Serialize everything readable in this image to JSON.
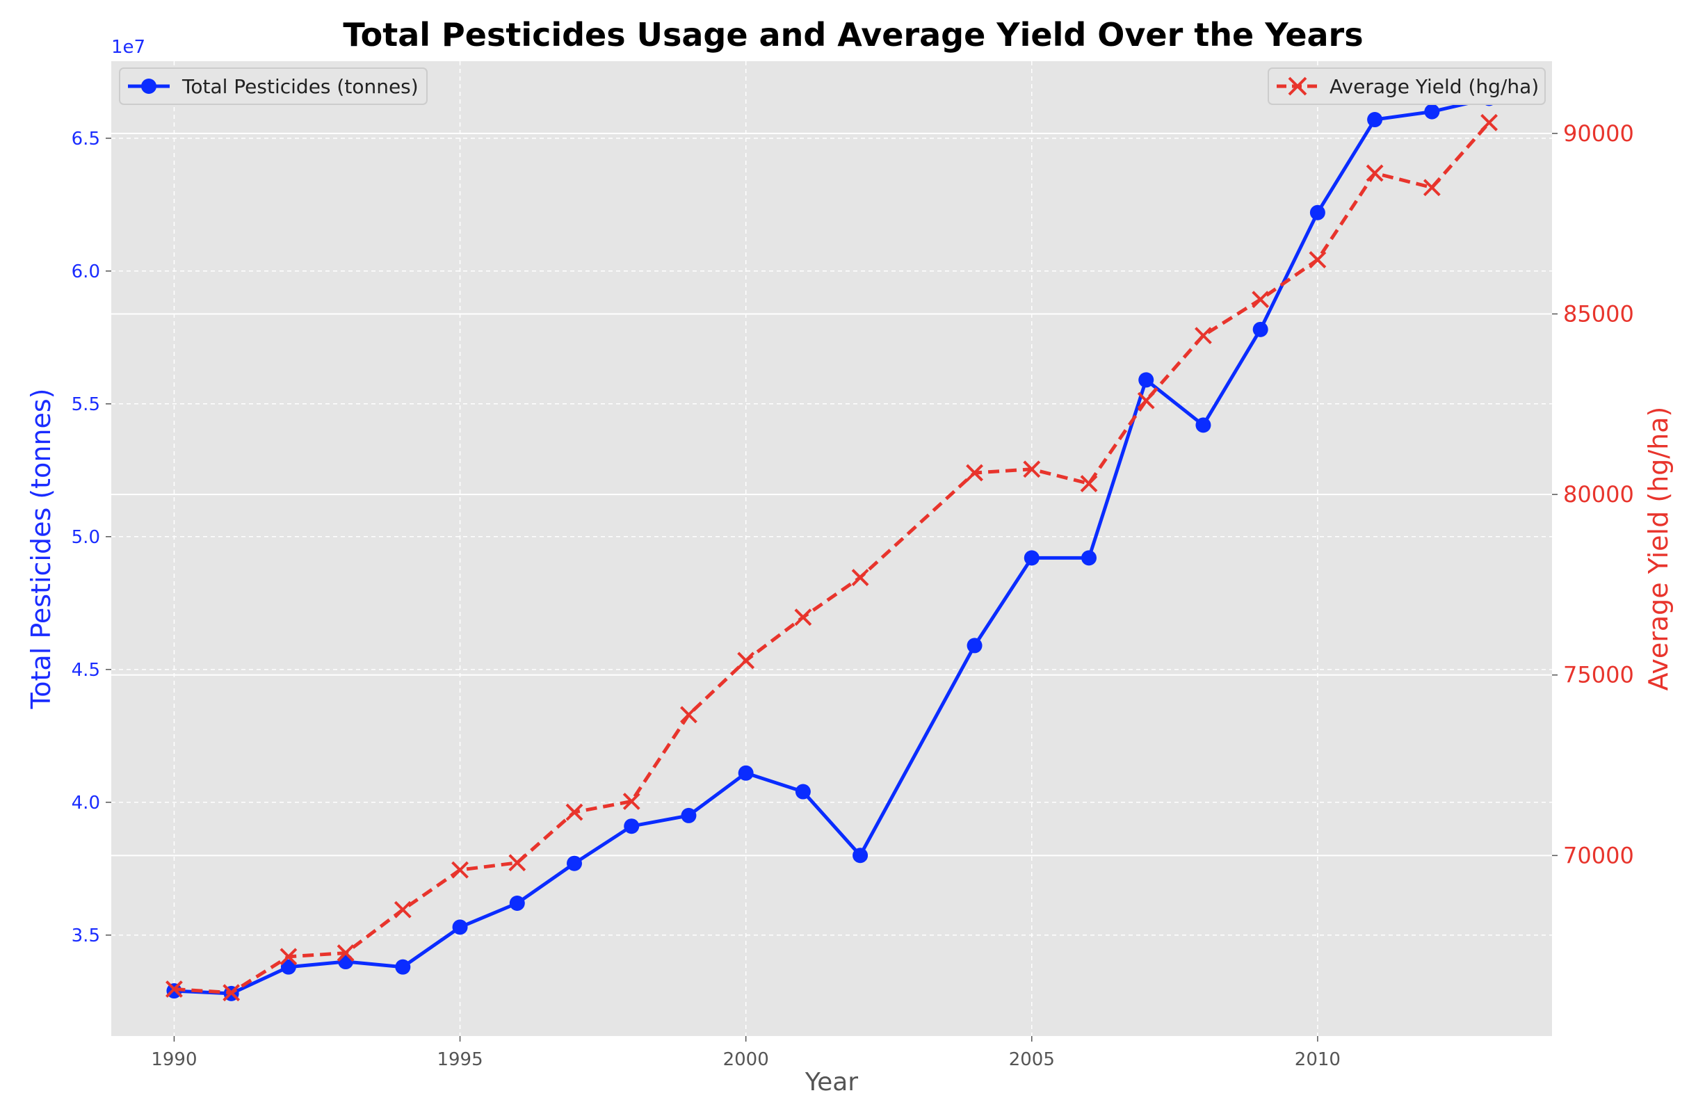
{
  "chart_data": {
    "type": "line",
    "title": "Total Pesticides Usage and Average Yield Over the Years",
    "xlabel": "Year",
    "ylabel_left": "Total Pesticides (tonnes)",
    "ylabel_right": "Average Yield (hg/ha)",
    "left_axis_offset_label": "1e7",
    "xlim": [
      1988.9,
      2014.1
    ],
    "ylim_left": [
      31200000,
      67900000
    ],
    "ylim_right": [
      65000,
      92000
    ],
    "x_ticks": [
      1990,
      1995,
      2000,
      2005,
      2010
    ],
    "left_ticks": [
      {
        "value": 35000000,
        "label": "3.5"
      },
      {
        "value": 40000000,
        "label": "4.0"
      },
      {
        "value": 45000000,
        "label": "4.5"
      },
      {
        "value": 50000000,
        "label": "5.0"
      },
      {
        "value": 55000000,
        "label": "5.5"
      },
      {
        "value": 60000000,
        "label": "6.0"
      },
      {
        "value": 65000000,
        "label": "6.5"
      }
    ],
    "right_ticks": [
      70000,
      75000,
      80000,
      85000,
      90000
    ],
    "grid": true,
    "colors": {
      "pesticides": "#0a2cff",
      "yield": "#e8342c",
      "plot_bg": "#e5e5e5",
      "grid": "#ffffff"
    },
    "series": [
      {
        "name": "Total Pesticides (tonnes)",
        "axis": "left",
        "marker": "circle",
        "linestyle": "solid",
        "legend_position": "top-left",
        "x": [
          1990,
          1991,
          1992,
          1993,
          1994,
          1995,
          1996,
          1997,
          1998,
          1999,
          2000,
          2001,
          2002,
          2004,
          2005,
          2006,
          2007,
          2008,
          2009,
          2010,
          2011,
          2012,
          2013
        ],
        "values": [
          32900000,
          32800000,
          33800000,
          34000000,
          33800000,
          35300000,
          36200000,
          37700000,
          39100000,
          39500000,
          41100000,
          40400000,
          38000000,
          45900000,
          49200000,
          49200000,
          55900000,
          54200000,
          57800000,
          62200000,
          65700000,
          66000000,
          66500000
        ]
      },
      {
        "name": "Average Yield (hg/ha)",
        "axis": "right",
        "marker": "x",
        "linestyle": "dashed",
        "legend_position": "top-right",
        "x": [
          1990,
          1991,
          1992,
          1993,
          1994,
          1995,
          1996,
          1997,
          1998,
          1999,
          2000,
          2001,
          2002,
          2004,
          2005,
          2006,
          2007,
          2008,
          2009,
          2010,
          2011,
          2012,
          2013
        ],
        "values": [
          66300,
          66200,
          67200,
          67300,
          68500,
          69600,
          69800,
          71200,
          71500,
          73900,
          75400,
          76600,
          77700,
          80600,
          80700,
          80300,
          82600,
          84400,
          85400,
          86500,
          88900,
          88500,
          90300
        ]
      }
    ]
  }
}
